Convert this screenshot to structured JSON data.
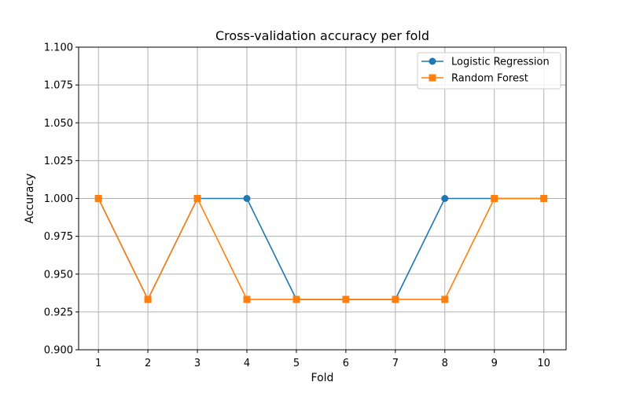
{
  "chart_data": {
    "type": "line",
    "title": "Cross-validation accuracy per fold",
    "xlabel": "Fold",
    "ylabel": "Accuracy",
    "x": [
      1,
      2,
      3,
      4,
      5,
      6,
      7,
      8,
      9,
      10
    ],
    "xlim": [
      0.6,
      10.45
    ],
    "ylim": [
      0.9,
      1.1
    ],
    "yticks": [
      "0.900",
      "0.925",
      "0.950",
      "0.975",
      "1.000",
      "1.025",
      "1.050",
      "1.075",
      "1.100"
    ],
    "grid": true,
    "legend_position": "top-right",
    "series": [
      {
        "name": "Logistic Regression",
        "color": "#1f77b4",
        "marker": "circle",
        "values": [
          1.0,
          0.9333,
          1.0,
          1.0,
          0.9333,
          0.9333,
          0.9333,
          1.0,
          1.0,
          1.0
        ]
      },
      {
        "name": "Random Forest",
        "color": "#ff7f0e",
        "marker": "square",
        "values": [
          1.0,
          0.9333,
          1.0,
          0.9333,
          0.9333,
          0.9333,
          0.9333,
          0.9333,
          1.0,
          1.0
        ]
      }
    ]
  }
}
